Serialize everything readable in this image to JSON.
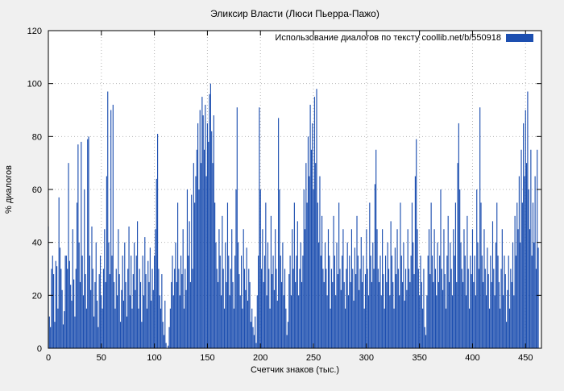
{
  "window": {
    "kind": "gnuplot-style statistics chart"
  },
  "chart_data": {
    "type": "bar",
    "title": "Эликсир Власти (Люси Пьерра-Пажо)",
    "legend_label": "Использование диалогов по тексту  coollib.net/b/550918",
    "xlabel": "Счетчик знаков (тыс.)",
    "ylabel": "% диалогов",
    "xlim": [
      0,
      465
    ],
    "ylim": [
      0,
      120
    ],
    "x_ticks": [
      0,
      50,
      100,
      150,
      200,
      250,
      300,
      350,
      400,
      450
    ],
    "y_ticks": [
      0,
      20,
      40,
      60,
      80,
      100,
      120
    ],
    "grid": true,
    "legend_position": "top-right-inside",
    "bar_color": "#1d4fb0",
    "plot_bg": "#ffffff",
    "figure_bg": "#f0f0f0",
    "x_start": 0,
    "x_step": 1,
    "values": [
      46,
      12,
      8,
      30,
      35,
      28,
      10,
      33,
      31,
      15,
      57,
      38,
      30,
      22,
      9,
      14,
      35,
      35,
      30,
      70,
      33,
      24,
      18,
      45,
      26,
      12,
      30,
      55,
      77,
      40,
      25,
      78,
      35,
      20,
      60,
      28,
      15,
      79,
      80,
      35,
      22,
      46,
      30,
      12,
      25,
      40,
      18,
      8,
      28,
      35,
      20,
      15,
      30,
      45,
      25,
      65,
      97,
      40,
      28,
      90,
      35,
      92,
      25,
      15,
      30,
      20,
      45,
      28,
      10,
      22,
      35,
      18,
      40,
      25,
      12,
      30,
      46,
      20,
      35,
      15,
      28,
      40,
      22,
      35,
      48,
      15,
      30,
      25,
      10,
      35,
      20,
      42,
      28,
      15,
      33,
      25,
      38,
      18,
      30,
      22,
      35,
      45,
      64,
      81,
      30,
      20,
      15,
      28,
      10,
      5,
      18,
      2,
      0,
      1,
      8,
      15,
      25,
      35,
      20,
      30,
      40,
      25,
      55,
      30,
      20,
      35,
      28,
      45,
      15,
      30,
      22,
      60,
      35,
      48,
      25,
      58,
      30,
      70,
      55,
      65,
      75,
      85,
      60,
      90,
      70,
      95,
      88,
      75,
      92,
      65,
      85,
      78,
      96,
      100,
      82,
      70,
      88,
      55,
      40,
      30,
      25,
      45,
      35,
      20,
      50,
      30,
      15,
      40,
      25,
      55,
      35,
      20,
      30,
      45,
      25,
      15,
      35,
      60,
      91,
      40,
      28,
      20,
      35,
      15,
      45,
      30,
      22,
      38,
      18,
      30,
      25,
      10,
      15,
      8,
      5,
      12,
      2,
      20,
      35,
      91,
      60,
      30,
      45,
      25,
      35,
      55,
      20,
      40,
      30,
      15,
      50,
      28,
      35,
      22,
      45,
      30,
      18,
      87,
      60,
      35,
      25,
      40,
      20,
      30,
      15,
      5,
      10,
      28,
      35,
      20,
      45,
      30,
      55,
      25,
      35,
      48,
      20,
      30,
      40,
      25,
      35,
      60,
      45,
      70,
      55,
      80,
      65,
      92,
      75,
      85,
      60,
      95,
      70,
      98,
      55,
      40,
      65,
      35,
      50,
      30,
      25,
      40,
      30,
      20,
      45,
      35,
      15,
      30,
      25,
      50,
      35,
      20,
      40,
      28,
      55,
      30,
      22,
      35,
      45,
      25,
      15,
      30,
      40,
      20,
      35,
      25,
      45,
      30,
      18,
      38,
      28,
      50,
      35,
      22,
      30,
      42,
      25,
      35,
      15,
      28,
      45,
      30,
      20,
      55,
      35,
      25,
      40,
      30,
      62,
      75,
      45,
      30,
      25,
      35,
      20,
      45,
      28,
      15,
      35,
      25,
      40,
      30,
      20,
      48,
      35,
      25,
      15,
      38,
      28,
      45,
      30,
      20,
      55,
      35,
      25,
      40,
      18,
      30,
      22,
      45,
      30,
      25,
      35,
      55,
      40,
      28,
      65,
      79,
      45,
      30,
      20,
      35,
      25,
      15,
      30,
      8,
      5,
      20,
      35,
      45,
      28,
      55,
      35,
      25,
      45,
      30,
      20,
      40,
      25,
      35,
      60,
      30,
      22,
      45,
      28,
      15,
      35,
      50,
      25,
      40,
      30,
      20,
      45,
      35,
      55,
      25,
      70,
      85,
      60,
      40,
      30,
      25,
      45,
      35,
      20,
      50,
      30,
      15,
      35,
      28,
      45,
      25,
      35,
      20,
      60,
      40,
      30,
      91,
      55,
      35,
      25,
      45,
      30,
      20,
      38,
      28,
      15,
      35,
      25,
      48,
      30,
      20,
      40,
      55,
      35,
      25,
      15,
      30,
      45,
      20,
      35,
      28,
      10,
      22,
      35,
      15,
      30,
      25,
      40,
      20,
      50,
      35,
      55,
      45,
      65,
      40,
      75,
      55,
      85,
      65,
      90,
      70,
      97,
      60,
      45,
      75,
      35,
      55,
      40,
      65,
      30,
      75,
      38
    ]
  }
}
